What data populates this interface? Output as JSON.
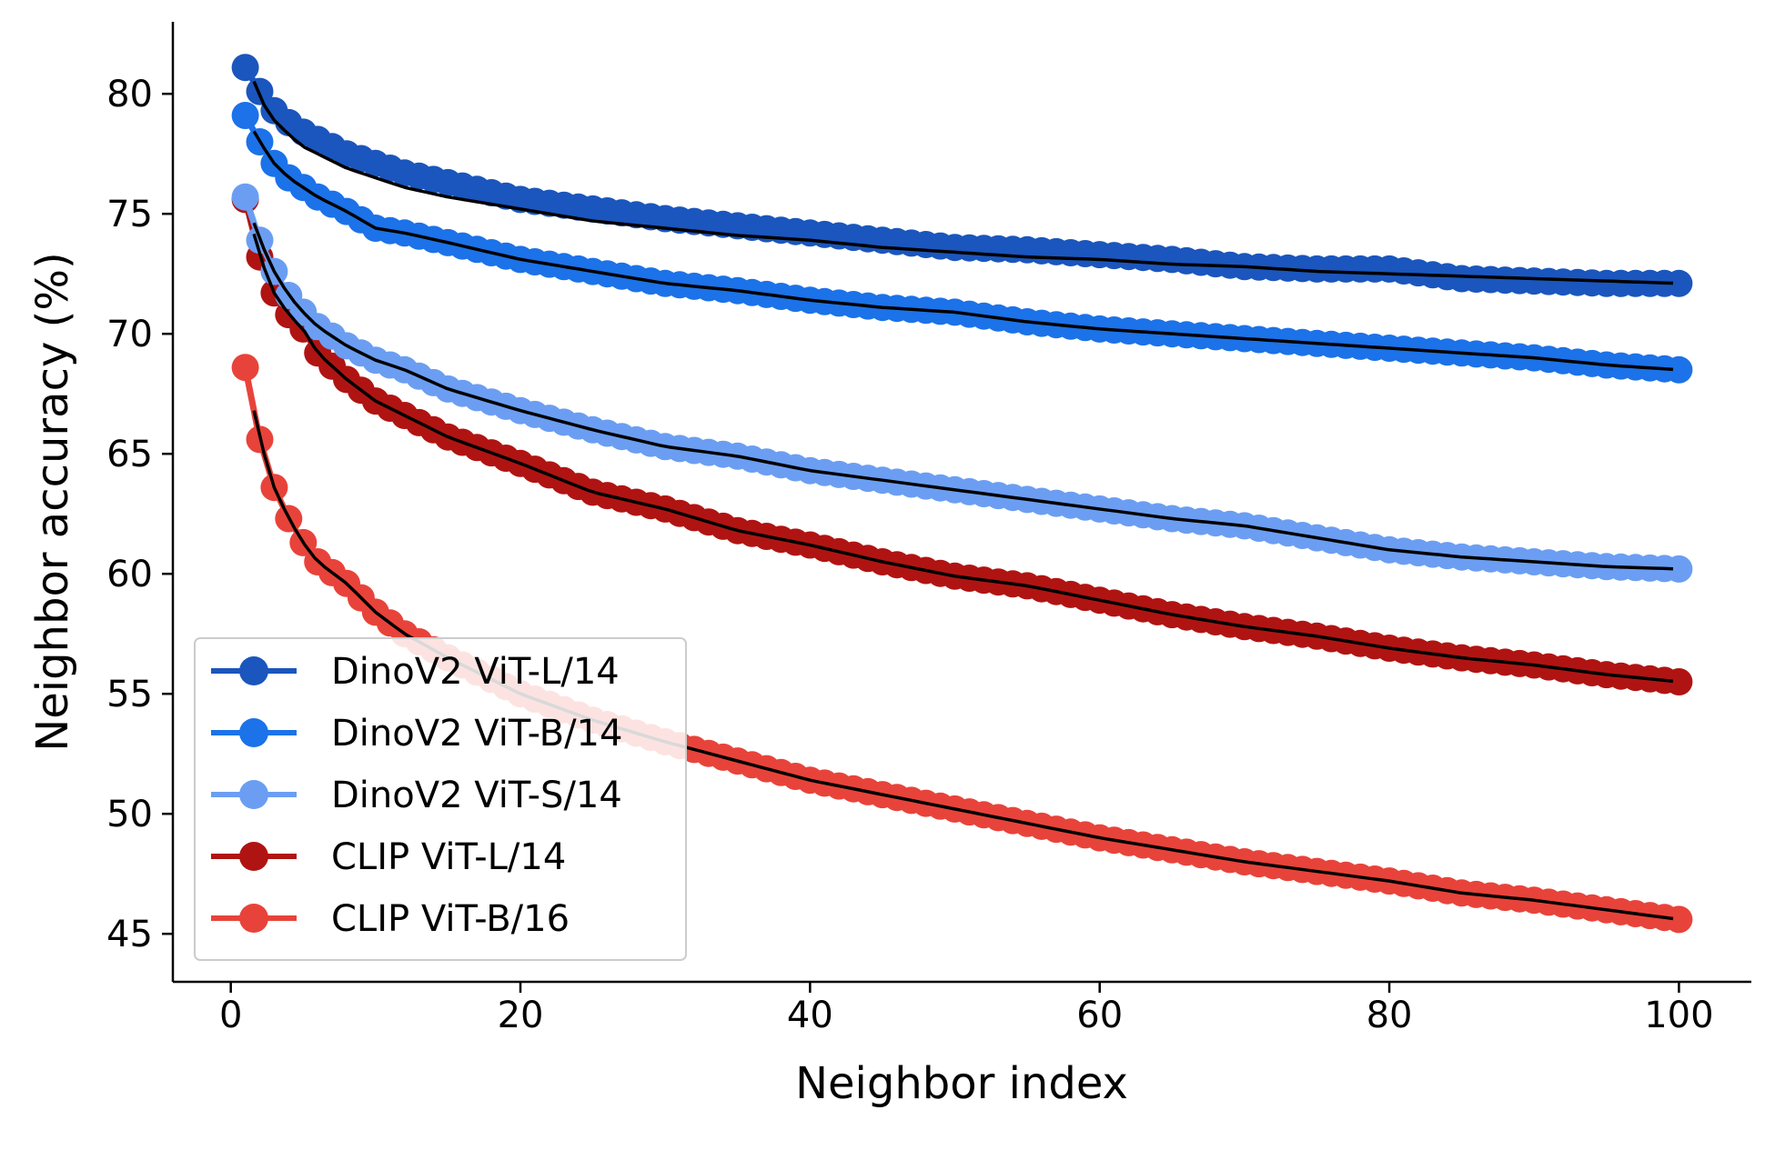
{
  "chart_data": {
    "type": "line",
    "xlabel": "Neighbor index",
    "ylabel": "Neighbor accuracy (%)",
    "xlim": [
      -4,
      105
    ],
    "ylim": [
      43,
      83
    ],
    "xticks": [
      0,
      20,
      40,
      60,
      80,
      100
    ],
    "yticks": [
      45,
      50,
      55,
      60,
      65,
      70,
      75,
      80
    ],
    "grid": false,
    "legend_position": "lower-left",
    "fit_line_color": "#000000",
    "series": [
      {
        "name": "DinoV2 ViT-L/14",
        "color": "#1a56bd",
        "x": [
          1,
          2,
          3,
          4,
          5,
          6,
          8,
          10,
          12,
          15,
          20,
          25,
          30,
          35,
          40,
          45,
          50,
          55,
          60,
          65,
          70,
          75,
          80,
          85,
          90,
          95,
          100
        ],
        "values": [
          81.1,
          80.1,
          79.3,
          78.8,
          78.4,
          78.1,
          77.5,
          77.1,
          76.7,
          76.3,
          75.6,
          75.2,
          74.8,
          74.5,
          74.2,
          73.9,
          73.6,
          73.5,
          73.3,
          73.1,
          72.8,
          72.7,
          72.7,
          72.3,
          72.2,
          72.1,
          72.1
        ],
        "fit": [
          81.6,
          79.8,
          78.9,
          78.3,
          77.8,
          77.5,
          76.9,
          76.5,
          76.1,
          75.7,
          75.2,
          74.7,
          74.4,
          74.1,
          73.9,
          73.6,
          73.4,
          73.2,
          73.1,
          72.9,
          72.8,
          72.6,
          72.5,
          72.4,
          72.3,
          72.2,
          72.1
        ]
      },
      {
        "name": "DinoV2 ViT-B/14",
        "color": "#1c72e8",
        "x": [
          1,
          2,
          3,
          4,
          5,
          6,
          8,
          10,
          12,
          15,
          20,
          25,
          30,
          35,
          40,
          45,
          50,
          55,
          60,
          65,
          70,
          75,
          80,
          85,
          90,
          95,
          100
        ],
        "values": [
          79.1,
          78.0,
          77.1,
          76.5,
          76.1,
          75.7,
          75.1,
          74.4,
          74.2,
          73.8,
          73.1,
          72.6,
          72.1,
          71.8,
          71.4,
          71.1,
          70.9,
          70.5,
          70.2,
          70.0,
          69.8,
          69.6,
          69.4,
          69.2,
          69.0,
          68.7,
          68.5
        ]
      },
      {
        "name": "DinoV2 ViT-S/14",
        "color": "#6b9ef2",
        "x": [
          1,
          2,
          3,
          4,
          5,
          6,
          8,
          10,
          12,
          15,
          20,
          25,
          30,
          35,
          40,
          45,
          50,
          55,
          60,
          65,
          70,
          75,
          80,
          85,
          90,
          95,
          100
        ],
        "values": [
          75.7,
          73.9,
          72.6,
          71.6,
          70.9,
          70.3,
          69.5,
          68.9,
          68.5,
          67.7,
          66.8,
          66.0,
          65.3,
          64.9,
          64.3,
          63.9,
          63.5,
          63.1,
          62.7,
          62.3,
          62.0,
          61.5,
          61.0,
          60.7,
          60.5,
          60.3,
          60.2
        ]
      },
      {
        "name": "CLIP ViT-L/14",
        "color": "#b01412",
        "x": [
          1,
          2,
          3,
          4,
          5,
          6,
          8,
          10,
          12,
          15,
          20,
          25,
          30,
          35,
          40,
          45,
          50,
          55,
          60,
          65,
          70,
          75,
          80,
          85,
          90,
          95,
          100
        ],
        "values": [
          75.6,
          73.2,
          71.7,
          70.8,
          70.2,
          69.2,
          68.1,
          67.2,
          66.6,
          65.7,
          64.6,
          63.4,
          62.7,
          61.8,
          61.2,
          60.5,
          59.9,
          59.5,
          58.9,
          58.3,
          57.8,
          57.4,
          56.9,
          56.5,
          56.2,
          55.8,
          55.5
        ]
      },
      {
        "name": "CLIP ViT-B/16",
        "color": "#e8433a",
        "x": [
          1,
          2,
          3,
          4,
          5,
          6,
          8,
          10,
          12,
          15,
          20,
          25,
          30,
          35,
          40,
          45,
          50,
          55,
          60,
          65,
          70,
          75,
          80,
          85,
          90,
          95,
          100
        ],
        "values": [
          68.6,
          65.6,
          63.6,
          62.3,
          61.3,
          60.5,
          59.6,
          58.4,
          57.5,
          56.5,
          55.0,
          53.9,
          53.0,
          52.2,
          51.4,
          50.8,
          50.2,
          49.6,
          49.0,
          48.5,
          48.0,
          47.6,
          47.2,
          46.7,
          46.4,
          46.0,
          45.6
        ]
      }
    ]
  }
}
